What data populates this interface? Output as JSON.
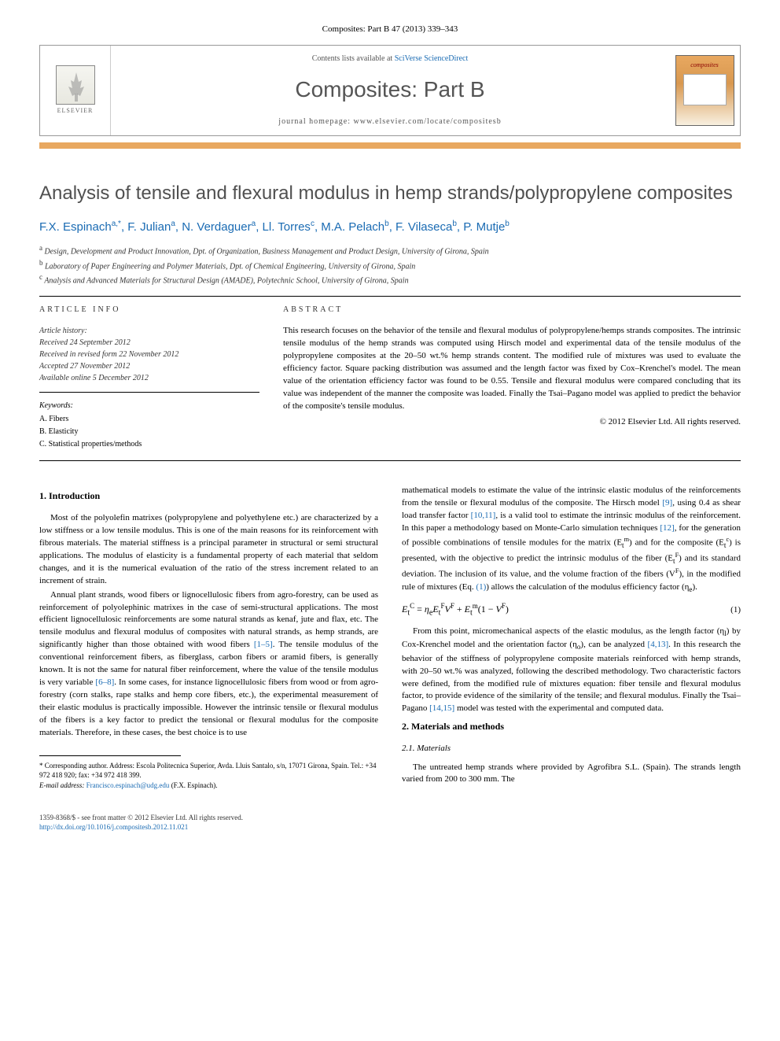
{
  "top_citation": "Composites: Part B 47 (2013) 339–343",
  "header": {
    "contents_prefix": "Contents lists available at ",
    "contents_link": "SciVerse ScienceDirect",
    "journal_name": "Composites: Part B",
    "homepage_prefix": "journal homepage: ",
    "homepage_url": "www.elsevier.com/locate/compositesb",
    "elsevier_label": "ELSEVIER",
    "cover_title": "composites"
  },
  "article": {
    "title": "Analysis of tensile and flexural modulus in hemp strands/polypropylene composites",
    "authors_html": "F.X. Espinach<sup>a,*</sup>, F. Julian<sup>a</sup>, N. Verdaguer<sup>a</sup>, Ll. Torres<sup>c</sup>, M.A. Pelach<sup>b</sup>, F. Vilaseca<sup>b</sup>, P. Mutje<sup>b</sup>",
    "affiliations": [
      "<sup>a</sup> Design, Development and Product Innovation, Dpt. of Organization, Business Management and Product Design, University of Girona, Spain",
      "<sup>b</sup> Laboratory of Paper Engineering and Polymer Materials, Dpt. of Chemical Engineering, University of Girona, Spain",
      "<sup>c</sup> Analysis and Advanced Materials for Structural Design (AMADE), Polytechnic School, University of Girona, Spain"
    ]
  },
  "info": {
    "article_info_label": "ARTICLE INFO",
    "abstract_label": "ABSTRACT",
    "history_title": "Article history:",
    "history_lines": [
      "Received 24 September 2012",
      "Received in revised form 22 November 2012",
      "Accepted 27 November 2012",
      "Available online 5 December 2012"
    ],
    "keywords_label": "Keywords:",
    "keywords": [
      "A. Fibers",
      "B. Elasticity",
      "C. Statistical properties/methods"
    ],
    "abstract_text": "This research focuses on the behavior of the tensile and flexural modulus of polypropylene/hemps strands composites. The intrinsic tensile modulus of the hemp strands was computed using Hirsch model and experimental data of the tensile modulus of the polypropylene composites at the 20–50 wt.% hemp strands content. The modified rule of mixtures was used to evaluate the efficiency factor. Square packing distribution was assumed and the length factor was fixed by Cox–Krenchel's model. The mean value of the orientation efficiency factor was found to be 0.55. Tensile and flexural modulus were compared concluding that its value was independent of the manner the composite was loaded. Finally the Tsai–Pagano model was applied to predict the behavior of the composite's tensile modulus.",
    "copyright": "© 2012 Elsevier Ltd. All rights reserved."
  },
  "body": {
    "sec1_heading": "1. Introduction",
    "sec1_p1": "Most of the polyolefin matrixes (polypropylene and polyethylene etc.) are characterized by a low stiffness or a low tensile modulus. This is one of the main reasons for its reinforcement with fibrous materials. The material stiffness is a principal parameter in structural or semi structural applications. The modulus of elasticity is a fundamental property of each material that seldom changes, and it is the numerical evaluation of the ratio of the stress increment related to an increment of strain.",
    "sec1_p2_a": "Annual plant strands, wood fibers or lignocellulosic fibers from agro-forestry, can be used as reinforcement of polyolephinic matrixes in the case of semi-structural applications. The most efficient lignocellulosic reinforcements are some natural strands as kenaf, jute and flax, etc. The tensile modulus and flexural modulus of composites with natural strands, as hemp strands, are significantly higher than those obtained with wood fibers ",
    "sec1_p2_ref1": "[1–5]",
    "sec1_p2_b": ". The tensile modulus of the conventional reinforcement fibers, as fiberglass, carbon fibers or aramid fibers, is generally known. It is not the same for natural fiber reinforcement, where the value of the tensile modulus is very variable ",
    "sec1_p2_ref2": "[6–8]",
    "sec1_p2_c": ". In some cases, for instance lignocellulosic fibers from wood or from agro-forestry (corn stalks, rape stalks and hemp core fibers, etc.), the experimental measurement of their elastic modulus is practically impossible. However the intrinsic tensile or flexural modulus of the fibers is a key factor to predict the tensional or flexural modulus for the composite materials. Therefore, in these cases, the best choice is to use",
    "sec1_p3_a": "mathematical models to estimate the value of the intrinsic elastic modulus of the reinforcements from the tensile or flexural modulus of the composite. The Hirsch model ",
    "sec1_p3_ref1": "[9]",
    "sec1_p3_b": ", using 0.4 as shear load transfer factor ",
    "sec1_p3_ref2": "[10,11]",
    "sec1_p3_c": ", is a valid tool to estimate the intrinsic modulus of the reinforcement. In this paper a methodology based on Monte-Carlo simulation techniques ",
    "sec1_p3_ref3": "[12]",
    "sec1_p3_d": ", for the generation of possible combinations of tensile modules for the matrix (E",
    "sec1_p3_e": ") and for the composite (E",
    "sec1_p3_f": ") is presented, with the objective to predict the intrinsic modulus of the fiber (E",
    "sec1_p3_g": ") and its standard deviation. The inclusion of its value, and the volume fraction of the fibers (V",
    "sec1_p3_h": "), in the modified rule of mixtures (Eq. ",
    "sec1_p3_eqref": "(1)",
    "sec1_p3_i": ") allows the calculation of the modulus efficiency factor (η",
    "sec1_p3_j": ").",
    "equation1": "E_t^C = η_e E_t^F V^F + E_t^m (1 − V^F)",
    "eq1_num": "(1)",
    "sec1_p4_a": "From this point, micromechanical aspects of the elastic modulus, as the length factor (η",
    "sec1_p4_b": ") by Cox-Krenchel model and the orientation factor (η",
    "sec1_p4_c": "), can be analyzed ",
    "sec1_p4_ref1": "[4,13]",
    "sec1_p4_d": ". In this research the behavior of the stiffness of polypropylene composite materials reinforced with hemp strands, with 20–50 wt.% was analyzed, following the described methodology. Two characteristic factors were defined, from the modified rule of mixtures equation: fiber tensile and flexural modulus factor, to provide evidence of the similarity of the tensile; and flexural modulus. Finally the Tsai–Pagano ",
    "sec1_p4_ref2": "[14,15]",
    "sec1_p4_e": " model was tested with the experimental and computed data.",
    "sec2_heading": "2. Materials and methods",
    "sec21_heading": "2.1. Materials",
    "sec21_p1": "The untreated hemp strands where provided by Agrofibra S.L. (Spain). The strands length varied from 200 to 300 mm. The"
  },
  "footnote": {
    "corresponding": "* Corresponding author. Address: Escola Politecnica Superior, Avda. Lluis Santalo, s/n, 17071 Girona, Spain. Tel.: +34 972 418 920; fax: +34 972 418 399.",
    "email_label": "E-mail address: ",
    "email": "Francisco.espinach@udg.edu",
    "email_suffix": " (F.X. Espinach)."
  },
  "bottom": {
    "issn_line": "1359-8368/$ - see front matter © 2012 Elsevier Ltd. All rights reserved.",
    "doi": "http://dx.doi.org/10.1016/j.compositesb.2012.11.021"
  },
  "colors": {
    "link": "#1a6bb3",
    "title_gray": "#505050",
    "orange": "#e8a860"
  }
}
